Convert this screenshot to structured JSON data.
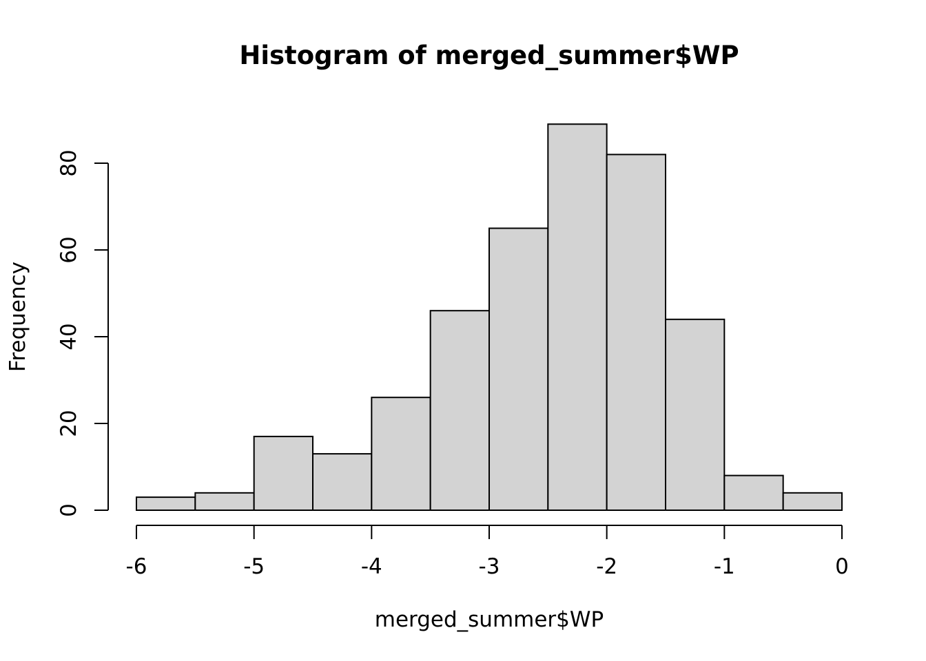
{
  "chart_data": {
    "type": "bar",
    "title": "Histogram of merged_summer$WP",
    "xlabel": "merged_summer$WP",
    "ylabel": "Frequency",
    "bin_edges": [
      -6,
      -5.5,
      -5,
      -4.5,
      -4,
      -3.5,
      -3,
      -2.5,
      -2,
      -1.5,
      -1,
      -0.5,
      0
    ],
    "values": [
      3,
      4,
      17,
      13,
      26,
      46,
      65,
      89,
      82,
      44,
      8,
      4
    ],
    "xlim": [
      -6,
      0
    ],
    "ylim": [
      0,
      89
    ],
    "x_ticks": [
      -6,
      -5,
      -4,
      -3,
      -2,
      -1,
      0
    ],
    "x_tick_labels": [
      "-6",
      "-5",
      "-4",
      "-3",
      "-2",
      "-1",
      "0"
    ],
    "y_ticks": [
      0,
      20,
      40,
      60,
      80
    ],
    "y_tick_labels": [
      "0",
      "20",
      "40",
      "60",
      "80"
    ],
    "bar_color": "#d3d3d3",
    "grid": false,
    "legend": "none"
  }
}
